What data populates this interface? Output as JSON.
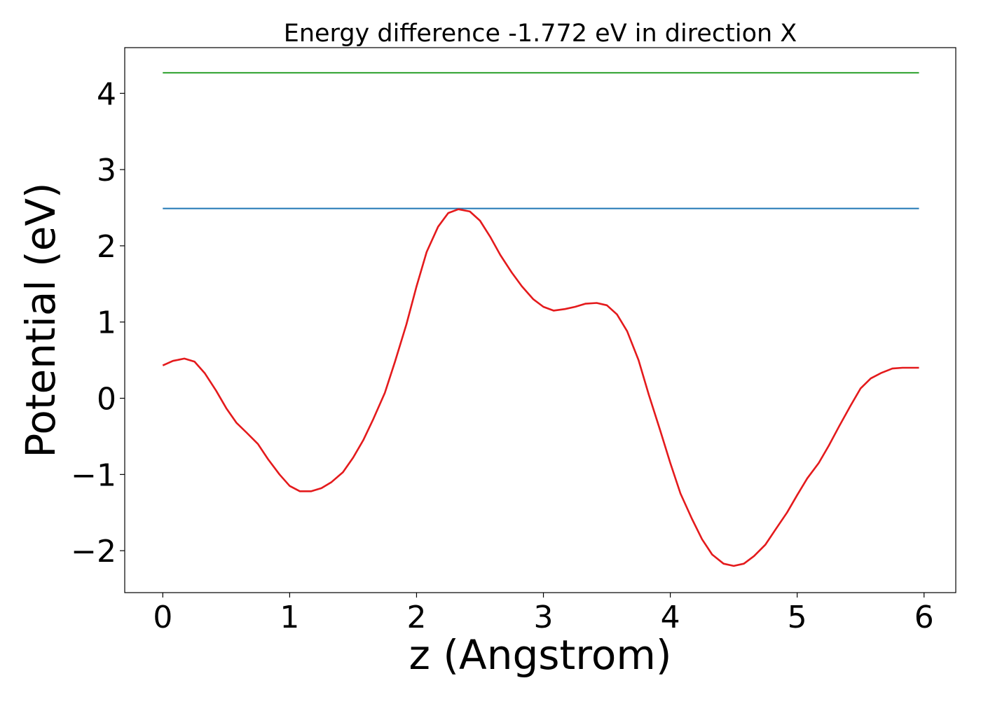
{
  "chart_data": {
    "type": "line",
    "title": "Energy difference -1.772 eV in direction X",
    "xlabel": "z (Angstrom)",
    "ylabel": "Potential (eV)",
    "xlim": [
      -0.3,
      6.25
    ],
    "ylim": [
      -2.55,
      4.6
    ],
    "x_ticks": [
      0,
      1,
      2,
      3,
      4,
      5,
      6
    ],
    "x_tick_labels": [
      "0",
      "1",
      "2",
      "3",
      "4",
      "5",
      "6"
    ],
    "y_ticks": [
      -2,
      -1,
      0,
      1,
      2,
      3,
      4
    ],
    "y_tick_labels": [
      "−2",
      "−1",
      "0",
      "1",
      "2",
      "3",
      "4"
    ],
    "grid": false,
    "series": [
      {
        "color": "#2ca02c",
        "x": [
          0,
          5.96
        ],
        "y": [
          4.27,
          4.27
        ]
      },
      {
        "color": "#1f77b4",
        "x": [
          0,
          5.96
        ],
        "y": [
          2.49,
          2.49
        ]
      },
      {
        "color": "#e41a1c",
        "x": [
          0,
          0.08,
          0.17,
          0.25,
          0.33,
          0.42,
          0.5,
          0.58,
          0.66,
          0.75,
          0.83,
          0.92,
          1.0,
          1.08,
          1.17,
          1.25,
          1.33,
          1.42,
          1.5,
          1.58,
          1.66,
          1.75,
          1.83,
          1.92,
          2.0,
          2.08,
          2.17,
          2.25,
          2.33,
          2.42,
          2.5,
          2.58,
          2.66,
          2.75,
          2.83,
          2.92,
          3.0,
          3.08,
          3.17,
          3.25,
          3.33,
          3.42,
          3.5,
          3.58,
          3.66,
          3.75,
          3.83,
          3.92,
          4.0,
          4.08,
          4.17,
          4.25,
          4.33,
          4.42,
          4.5,
          4.58,
          4.66,
          4.75,
          4.83,
          4.92,
          5.0,
          5.08,
          5.17,
          5.25,
          5.33,
          5.42,
          5.5,
          5.58,
          5.66,
          5.75,
          5.83,
          5.92,
          5.96
        ],
        "y": [
          0.43,
          0.49,
          0.52,
          0.48,
          0.33,
          0.1,
          -0.13,
          -0.32,
          -0.45,
          -0.6,
          -0.8,
          -1.0,
          -1.15,
          -1.22,
          -1.22,
          -1.18,
          -1.1,
          -0.97,
          -0.78,
          -0.55,
          -0.27,
          0.07,
          0.48,
          0.97,
          1.47,
          1.92,
          2.25,
          2.43,
          2.48,
          2.45,
          2.33,
          2.12,
          1.88,
          1.65,
          1.47,
          1.3,
          1.2,
          1.15,
          1.17,
          1.2,
          1.24,
          1.25,
          1.22,
          1.1,
          0.88,
          0.5,
          0.05,
          -0.42,
          -0.85,
          -1.25,
          -1.58,
          -1.85,
          -2.05,
          -2.17,
          -2.2,
          -2.17,
          -2.07,
          -1.92,
          -1.72,
          -1.5,
          -1.27,
          -1.05,
          -0.85,
          -0.62,
          -0.37,
          -0.1,
          0.13,
          0.26,
          0.33,
          0.39,
          0.4,
          0.4,
          0.4
        ]
      }
    ]
  }
}
